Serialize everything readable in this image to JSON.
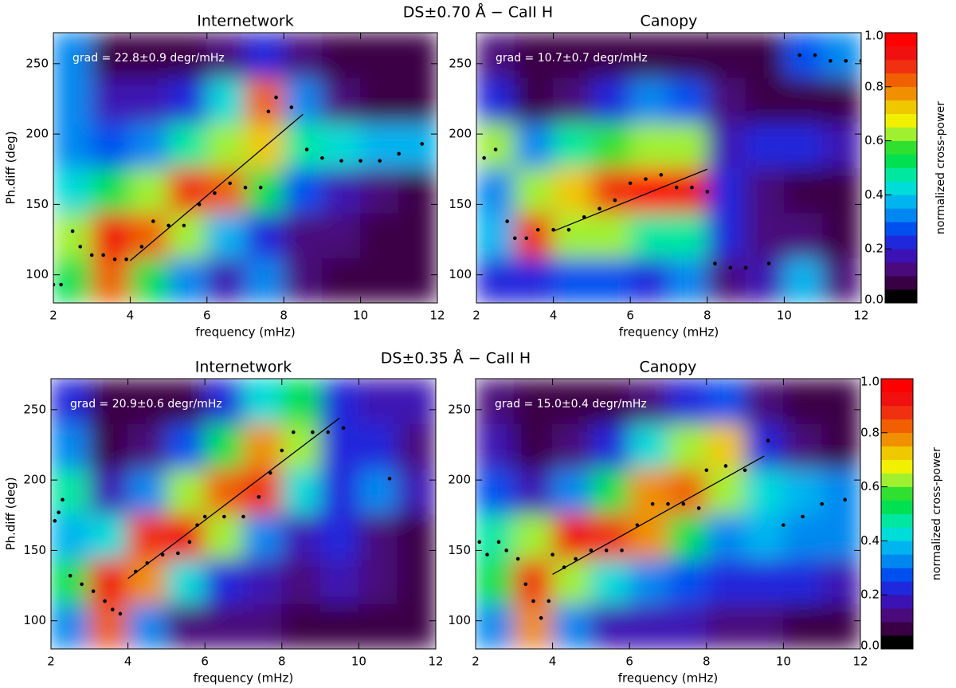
{
  "chart_data": [
    {
      "type": "heatmap",
      "suptitle": "DS±0.70 Å − CaII H",
      "title": "Internetwork",
      "annotation": "grad = 22.8±0.9 degr/mHz",
      "xlabel": "frequency (mHz)",
      "ylabel": "Ph.diff (deg)",
      "xlim": [
        2,
        12
      ],
      "xticks": [
        2,
        4,
        6,
        8,
        10,
        12
      ],
      "ylim": [
        80,
        272
      ],
      "yticks": [
        100,
        150,
        200,
        250
      ],
      "x_bins": [
        2,
        3,
        4,
        5,
        6,
        7,
        8,
        9,
        10,
        11,
        12
      ],
      "y_bins": [
        80,
        112,
        144,
        176,
        208,
        240,
        272
      ],
      "z": [
        [
          0.5,
          0.8,
          0.5,
          0.3,
          0.15,
          0.3,
          0.1,
          0.08,
          0.05,
          0.05
        ],
        [
          0.6,
          0.9,
          0.8,
          0.6,
          0.35,
          0.2,
          0.1,
          0.1,
          0.08,
          0.05
        ],
        [
          0.4,
          0.5,
          0.6,
          0.85,
          0.8,
          0.5,
          0.25,
          0.15,
          0.1,
          0.08
        ],
        [
          0.3,
          0.25,
          0.3,
          0.45,
          0.6,
          0.7,
          0.45,
          0.4,
          0.35,
          0.35
        ],
        [
          0.3,
          0.15,
          0.15,
          0.2,
          0.4,
          0.8,
          0.3,
          0.1,
          0.05,
          0.05
        ],
        [
          0.3,
          0.08,
          0.05,
          0.05,
          0.1,
          0.2,
          0.1,
          0.05,
          0.05,
          0.05
        ]
      ],
      "ridge": {
        "x": [
          2.0,
          2.2,
          2.5,
          2.7,
          3.0,
          3.3,
          3.6,
          3.9,
          4.3,
          4.6,
          5.0,
          5.4,
          5.8,
          6.2,
          6.6,
          7.0,
          7.4,
          7.6,
          7.8,
          8.2,
          8.6,
          9.0,
          9.5,
          10.0,
          10.5,
          11.0,
          11.6
        ],
        "y": [
          93,
          93,
          131,
          120,
          114,
          114,
          111,
          111,
          120,
          138,
          135,
          135,
          150,
          158,
          165,
          162,
          162,
          216,
          226,
          219,
          189,
          183,
          181,
          181,
          181,
          186,
          193
        ]
      },
      "fit": {
        "x": [
          4,
          8.5
        ],
        "y": [
          110,
          214
        ]
      }
    },
    {
      "type": "heatmap",
      "title": "Canopy",
      "annotation": "grad = 10.7±0.7 degr/mHz",
      "xlabel": "frequency (mHz)",
      "xlim": [
        2,
        12
      ],
      "xticks": [
        2,
        4,
        6,
        8,
        10,
        12
      ],
      "ylim": [
        80,
        272
      ],
      "yticks": [
        100,
        150,
        200,
        250
      ],
      "x_bins": [
        2,
        3,
        4,
        5,
        6,
        7,
        8,
        9,
        10,
        11,
        12
      ],
      "y_bins": [
        80,
        112,
        144,
        176,
        208,
        240,
        272
      ],
      "z": [
        [
          0.2,
          0.2,
          0.25,
          0.25,
          0.2,
          0.3,
          0.1,
          0.15,
          0.35,
          0.1
        ],
        [
          0.35,
          0.85,
          0.6,
          0.6,
          0.45,
          0.45,
          0.2,
          0.1,
          0.1,
          0.08
        ],
        [
          0.3,
          0.6,
          0.7,
          0.85,
          0.95,
          0.9,
          0.2,
          0.1,
          0.08,
          0.05
        ],
        [
          0.6,
          0.3,
          0.45,
          0.55,
          0.6,
          0.6,
          0.15,
          0.2,
          0.2,
          0.15
        ],
        [
          0.2,
          0.05,
          0.1,
          0.2,
          0.3,
          0.25,
          0.1,
          0.08,
          0.05,
          0.05
        ],
        [
          0.1,
          0.05,
          0.05,
          0.05,
          0.05,
          0.05,
          0.05,
          0.05,
          0.25,
          0.3
        ]
      ],
      "ridge": {
        "x": [
          2.2,
          2.5,
          2.8,
          3.0,
          3.3,
          3.6,
          4.0,
          4.4,
          4.8,
          5.2,
          5.6,
          6.0,
          6.4,
          6.8,
          7.2,
          7.6,
          8.0,
          8.2,
          8.6,
          9.0,
          9.6,
          10.4,
          10.8,
          11.2,
          11.6,
          12.0
        ],
        "y": [
          183,
          189,
          138,
          126,
          126,
          132,
          132,
          132,
          141,
          147,
          153,
          165,
          168,
          171,
          162,
          162,
          159,
          108,
          105,
          105,
          108,
          256,
          256,
          252,
          252,
          252
        ]
      },
      "fit": {
        "x": [
          4,
          8
        ],
        "y": [
          131,
          175
        ]
      },
      "colorbar": {
        "label": "normalized cross-power",
        "clim": [
          0,
          1
        ],
        "ticks": [
          {
            "value": 0,
            "label": "0.0"
          },
          {
            "value": 0.2,
            "label": "0.2"
          },
          {
            "value": 0.4,
            "label": "0.4"
          },
          {
            "value": 0.6,
            "label": "0.6"
          },
          {
            "value": 0.8,
            "label": "0.8"
          },
          {
            "value": 1,
            "label": "1.0"
          }
        ],
        "colors": [
          "#000000",
          "#3a0044",
          "#4a0a7c",
          "#3c12b4",
          "#2028dc",
          "#0050f0",
          "#0088f0",
          "#00b4f0",
          "#00dcd8",
          "#00e8a0",
          "#00e050",
          "#30e030",
          "#a0f030",
          "#f0f000",
          "#f0c800",
          "#f09000",
          "#f06000",
          "#f03010",
          "#f01010",
          "#ff0000"
        ]
      }
    },
    {
      "type": "heatmap",
      "suptitle": "DS±0.35 Å − CaII H",
      "title": "Internetwork",
      "annotation": "grad = 20.9±0.6 degr/mHz",
      "xlabel": "frequency (mHz)",
      "ylabel": "Ph.diff (deg)",
      "xlim": [
        2,
        12
      ],
      "xticks": [
        2,
        4,
        6,
        8,
        10,
        12
      ],
      "ylim": [
        80,
        272
      ],
      "yticks": [
        100,
        150,
        200,
        250
      ],
      "x_bins": [
        2,
        3,
        4,
        5,
        6,
        7,
        8,
        9,
        10,
        11,
        12
      ],
      "y_bins": [
        80,
        112,
        144,
        176,
        208,
        240,
        272
      ],
      "z": [
        [
          0.3,
          0.8,
          0.3,
          0.1,
          0.1,
          0.1,
          0.08,
          0.08,
          0.05,
          0.05
        ],
        [
          0.5,
          0.9,
          0.75,
          0.4,
          0.2,
          0.15,
          0.1,
          0.15,
          0.1,
          0.08
        ],
        [
          0.35,
          0.4,
          0.85,
          0.9,
          0.6,
          0.3,
          0.15,
          0.2,
          0.1,
          0.08
        ],
        [
          0.45,
          0.15,
          0.3,
          0.6,
          0.8,
          0.85,
          0.4,
          0.2,
          0.3,
          0.15
        ],
        [
          0.3,
          0.08,
          0.1,
          0.25,
          0.5,
          0.75,
          0.6,
          0.2,
          0.2,
          0.1
        ],
        [
          0.2,
          0.05,
          0.05,
          0.05,
          0.2,
          0.4,
          0.5,
          0.2,
          0.15,
          0.15
        ]
      ],
      "ridge": {
        "x": [
          2.1,
          2.2,
          2.3,
          2.5,
          2.8,
          3.1,
          3.4,
          3.6,
          3.8,
          4.2,
          4.5,
          4.9,
          5.3,
          5.6,
          5.8,
          6.0,
          6.5,
          7.0,
          7.4,
          7.7,
          8.0,
          8.3,
          8.8,
          9.2,
          9.6,
          10.8
        ],
        "y": [
          171,
          177,
          186,
          132,
          126,
          121,
          114,
          108,
          105,
          135,
          141,
          147,
          148,
          156,
          168,
          174,
          174,
          174,
          188,
          205,
          221,
          234,
          234,
          234,
          237,
          201
        ]
      },
      "fit": {
        "x": [
          4,
          9.5
        ],
        "y": [
          130,
          244
        ]
      }
    },
    {
      "type": "heatmap",
      "title": "Canopy",
      "annotation": "grad = 15.0±0.4 degr/mHz",
      "xlabel": "frequency (mHz)",
      "xlim": [
        2,
        12
      ],
      "xticks": [
        2,
        4,
        6,
        8,
        10,
        12
      ],
      "ylim": [
        80,
        272
      ],
      "yticks": [
        100,
        150,
        200,
        250
      ],
      "x_bins": [
        2,
        3,
        4,
        5,
        6,
        7,
        8,
        9,
        10,
        11,
        12
      ],
      "y_bins": [
        80,
        112,
        144,
        176,
        208,
        240,
        272
      ],
      "z": [
        [
          0.3,
          0.75,
          0.3,
          0.15,
          0.15,
          0.15,
          0.1,
          0.1,
          0.08,
          0.05
        ],
        [
          0.5,
          0.85,
          0.6,
          0.4,
          0.3,
          0.25,
          0.2,
          0.2,
          0.2,
          0.15
        ],
        [
          0.45,
          0.6,
          0.9,
          0.85,
          0.75,
          0.5,
          0.3,
          0.35,
          0.3,
          0.3
        ],
        [
          0.25,
          0.15,
          0.3,
          0.5,
          0.75,
          0.8,
          0.6,
          0.4,
          0.35,
          0.3
        ],
        [
          0.15,
          0.08,
          0.1,
          0.2,
          0.4,
          0.6,
          0.7,
          0.2,
          0.1,
          0.08
        ],
        [
          0.1,
          0.05,
          0.05,
          0.05,
          0.1,
          0.2,
          0.25,
          0.1,
          0.05,
          0.05
        ]
      ],
      "ridge": {
        "x": [
          2.1,
          2.3,
          2.6,
          2.8,
          3.1,
          3.3,
          3.5,
          3.7,
          3.9,
          4.0,
          4.3,
          4.6,
          5.0,
          5.4,
          5.8,
          6.2,
          6.6,
          7.0,
          7.4,
          7.8,
          8.0,
          8.5,
          9.0,
          9.6,
          10.0,
          10.5,
          11.0,
          11.6
        ],
        "y": [
          156,
          147,
          156,
          150,
          144,
          126,
          114,
          102,
          114,
          147,
          138,
          144,
          150,
          150,
          150,
          168,
          183,
          183,
          183,
          180,
          207,
          210,
          207,
          228,
          168,
          174,
          183,
          186
        ]
      },
      "fit": {
        "x": [
          4,
          9.5
        ],
        "y": [
          133,
          217
        ]
      },
      "colorbar": {
        "label": "normalized cross-power",
        "clim": [
          0,
          1
        ],
        "ticks": [
          {
            "value": 0,
            "label": "0.0"
          },
          {
            "value": 0.2,
            "label": "0.2"
          },
          {
            "value": 0.4,
            "label": "0.4"
          },
          {
            "value": 0.6,
            "label": "0.6"
          },
          {
            "value": 0.8,
            "label": "0.8"
          },
          {
            "value": 1,
            "label": "1.0"
          }
        ],
        "colors": [
          "#000000",
          "#3a0044",
          "#4a0a7c",
          "#3c12b4",
          "#2028dc",
          "#0050f0",
          "#0088f0",
          "#00b4f0",
          "#00dcd8",
          "#00e8a0",
          "#00e050",
          "#30e030",
          "#a0f030",
          "#f0f000",
          "#f0c800",
          "#f09000",
          "#f06000",
          "#f03010",
          "#f01010",
          "#ff0000"
        ]
      }
    }
  ]
}
